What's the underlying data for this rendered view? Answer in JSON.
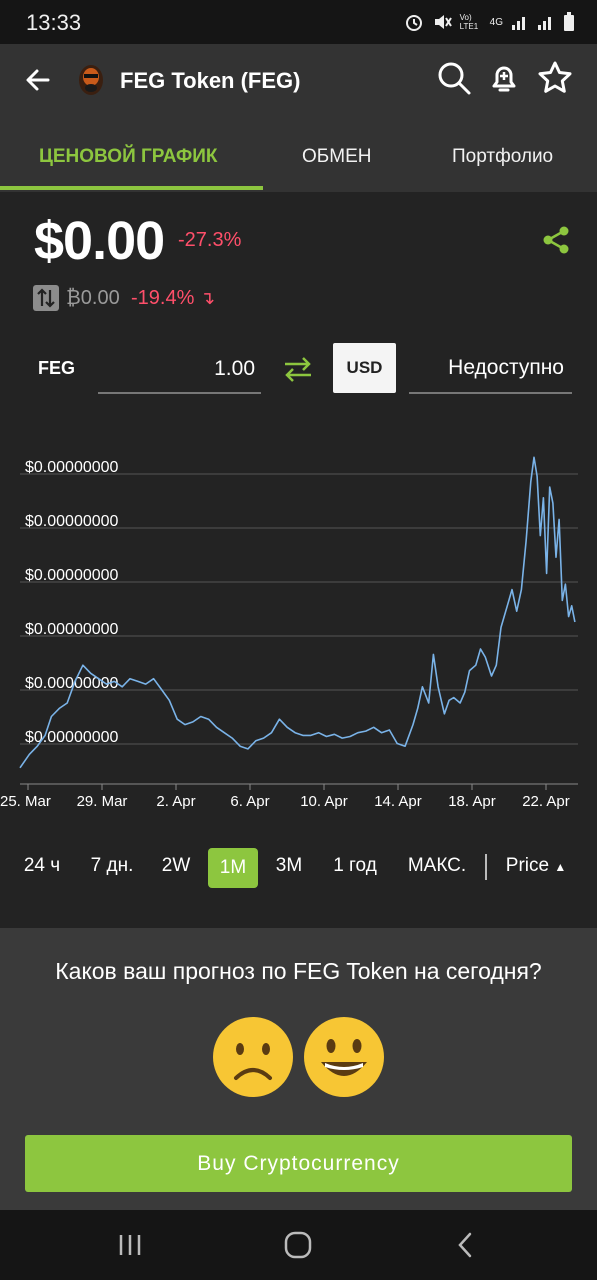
{
  "status": {
    "time": "13:33",
    "network": "4G",
    "volte": "Vo) LTE1"
  },
  "app_bar": {
    "title": "FEG Token (FEG)"
  },
  "tabs": [
    {
      "label": "ЦЕНОВОЙ ГРАФИК",
      "active": true
    },
    {
      "label": "ОБМЕН",
      "active": false
    },
    {
      "label": "Портфолио",
      "active": false
    }
  ],
  "price": {
    "usd": "$0.00",
    "usd_change": "-27.3%",
    "btc": "₿0.00",
    "btc_change": "-19.4%"
  },
  "converter": {
    "from_label": "FEG",
    "amount": "1.00",
    "currency": "USD",
    "result": "Недоступно"
  },
  "chart_data": {
    "type": "line",
    "categories": [
      "25. Mar",
      "29. Mar",
      "2. Apr",
      "6. Apr",
      "10. Apr",
      "14. Apr",
      "18. Apr",
      "22. Apr"
    ],
    "y_tick_labels": [
      "$0.00000000",
      "$0.00000000",
      "$0.00000000",
      "$0.00000000",
      "$0.00000000",
      "$0.00000000"
    ],
    "ylim": [
      0,
      6
    ],
    "grid": true,
    "series_color": "#7ab3e8",
    "points": [
      [
        0,
        0.3
      ],
      [
        0.6,
        0.55
      ],
      [
        1.1,
        0.7
      ],
      [
        1.6,
        0.9
      ],
      [
        2.0,
        1.25
      ],
      [
        2.5,
        1.4
      ],
      [
        3.0,
        1.5
      ],
      [
        3.5,
        1.9
      ],
      [
        4.0,
        2.2
      ],
      [
        4.5,
        2.05
      ],
      [
        5.0,
        1.95
      ],
      [
        5.5,
        1.85
      ],
      [
        6.0,
        1.9
      ],
      [
        6.5,
        1.8
      ],
      [
        7.0,
        1.95
      ],
      [
        7.5,
        1.9
      ],
      [
        8.0,
        1.85
      ],
      [
        8.5,
        1.95
      ],
      [
        9.0,
        1.75
      ],
      [
        9.5,
        1.55
      ],
      [
        10.0,
        1.2
      ],
      [
        10.5,
        1.1
      ],
      [
        11.0,
        1.15
      ],
      [
        11.5,
        1.25
      ],
      [
        12.0,
        1.2
      ],
      [
        12.5,
        1.05
      ],
      [
        13.0,
        0.95
      ],
      [
        13.5,
        0.85
      ],
      [
        14.0,
        0.7
      ],
      [
        14.5,
        0.65
      ],
      [
        15.0,
        0.8
      ],
      [
        15.5,
        0.85
      ],
      [
        16.0,
        0.95
      ],
      [
        16.5,
        1.2
      ],
      [
        17.0,
        1.05
      ],
      [
        17.5,
        0.95
      ],
      [
        18.0,
        0.9
      ],
      [
        18.5,
        0.9
      ],
      [
        19.0,
        0.95
      ],
      [
        19.5,
        0.88
      ],
      [
        20.0,
        0.92
      ],
      [
        20.5,
        0.85
      ],
      [
        21.0,
        0.88
      ],
      [
        21.5,
        0.95
      ],
      [
        22.0,
        0.98
      ],
      [
        22.5,
        1.05
      ],
      [
        23.0,
        0.95
      ],
      [
        23.5,
        1.0
      ],
      [
        24.0,
        0.75
      ],
      [
        24.5,
        0.7
      ],
      [
        25.0,
        1.1
      ],
      [
        25.3,
        1.4
      ],
      [
        25.6,
        1.8
      ],
      [
        26.0,
        1.5
      ],
      [
        26.3,
        2.4
      ],
      [
        26.6,
        1.8
      ],
      [
        27.0,
        1.3
      ],
      [
        27.3,
        1.55
      ],
      [
        27.6,
        1.6
      ],
      [
        28.0,
        1.5
      ],
      [
        28.3,
        1.7
      ],
      [
        28.6,
        2.1
      ],
      [
        29.0,
        2.2
      ],
      [
        29.3,
        2.5
      ],
      [
        29.6,
        2.35
      ],
      [
        30.0,
        2.0
      ],
      [
        30.3,
        2.2
      ],
      [
        30.6,
        2.9
      ],
      [
        31.0,
        3.3
      ],
      [
        31.3,
        3.6
      ],
      [
        31.6,
        3.2
      ],
      [
        31.9,
        3.6
      ],
      [
        32.2,
        4.5
      ],
      [
        32.5,
        5.6
      ],
      [
        32.7,
        6.05
      ],
      [
        32.9,
        5.7
      ],
      [
        33.1,
        4.6
      ],
      [
        33.3,
        5.3
      ],
      [
        33.5,
        3.9
      ],
      [
        33.7,
        5.5
      ],
      [
        33.9,
        5.2
      ],
      [
        34.1,
        4.2
      ],
      [
        34.3,
        4.9
      ],
      [
        34.5,
        3.4
      ],
      [
        34.7,
        3.7
      ],
      [
        34.9,
        3.1
      ],
      [
        35.1,
        3.3
      ],
      [
        35.3,
        3.0
      ]
    ],
    "x_domain": [
      0,
      35.5
    ]
  },
  "ranges": [
    {
      "label": "24 ч",
      "active": false
    },
    {
      "label": "7 дн.",
      "active": false
    },
    {
      "label": "2W",
      "active": false
    },
    {
      "label": "1M",
      "active": true
    },
    {
      "label": "3M",
      "active": false
    },
    {
      "label": "1 год",
      "active": false
    },
    {
      "label": "МАКС.",
      "active": false
    }
  ],
  "price_toggle": "Price",
  "prediction": {
    "question": "Каков ваш прогноз по FEG Token на сегодня?"
  },
  "buy_button": "Buy Cryptocurrency",
  "colors": {
    "accent": "#8dc63f",
    "negative": "#ff4f6a",
    "background": "#232323",
    "header": "#333333"
  },
  "icons": {
    "back": "arrow-left-icon",
    "search": "search-icon",
    "alert": "bell-plus-icon",
    "favorite": "star-icon",
    "share": "share-icon",
    "swap": "swap-icon",
    "sad": "sad-face-icon",
    "happy": "happy-face-icon"
  }
}
